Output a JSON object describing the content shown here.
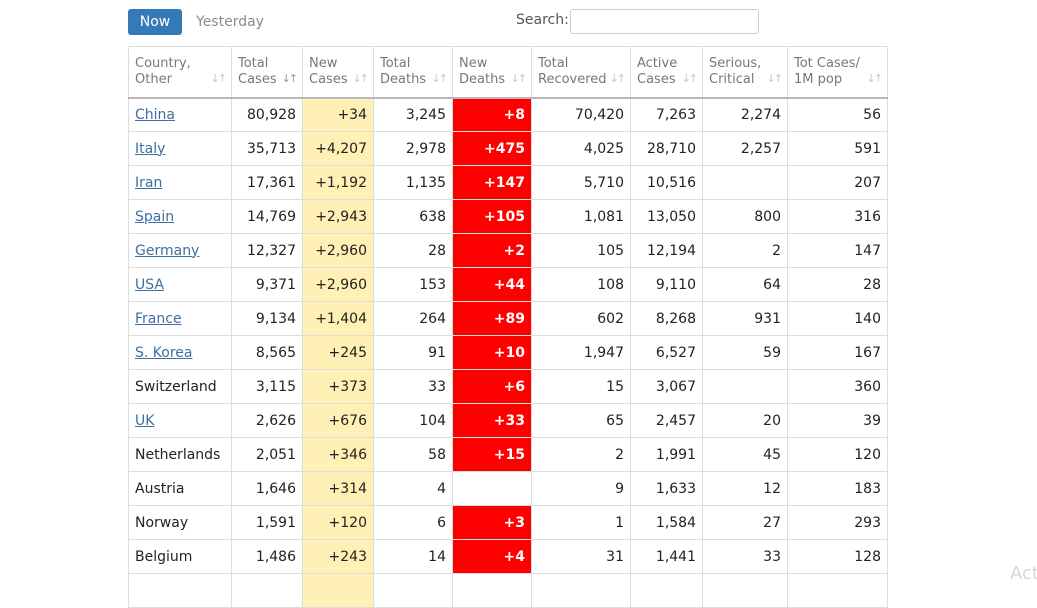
{
  "tabs": {
    "now": "Now",
    "yesterday": "Yesterday"
  },
  "search": {
    "label": "Search:",
    "value": "",
    "placeholder": ""
  },
  "table": {
    "headers": [
      [
        "Country,",
        "Other"
      ],
      [
        "Total",
        "Cases"
      ],
      [
        "New",
        "Cases"
      ],
      [
        "Total",
        "Deaths"
      ],
      [
        "New",
        "Deaths"
      ],
      [
        "Total",
        "Recovered"
      ],
      [
        "Active",
        "Cases"
      ],
      [
        "Serious,",
        "Critical"
      ],
      [
        "Tot Cases/",
        "1M pop"
      ]
    ],
    "rows": [
      {
        "country": "China",
        "link": true,
        "total_cases": "80,928",
        "new_cases": "+34",
        "total_deaths": "3,245",
        "new_deaths": "+8",
        "recovered": "70,420",
        "active": "7,263",
        "serious": "2,274",
        "per_million": "56"
      },
      {
        "country": "Italy",
        "link": true,
        "total_cases": "35,713",
        "new_cases": "+4,207",
        "total_deaths": "2,978",
        "new_deaths": "+475",
        "recovered": "4,025",
        "active": "28,710",
        "serious": "2,257",
        "per_million": "591"
      },
      {
        "country": "Iran",
        "link": true,
        "total_cases": "17,361",
        "new_cases": "+1,192",
        "total_deaths": "1,135",
        "new_deaths": "+147",
        "recovered": "5,710",
        "active": "10,516",
        "serious": "",
        "per_million": "207"
      },
      {
        "country": "Spain",
        "link": true,
        "total_cases": "14,769",
        "new_cases": "+2,943",
        "total_deaths": "638",
        "new_deaths": "+105",
        "recovered": "1,081",
        "active": "13,050",
        "serious": "800",
        "per_million": "316"
      },
      {
        "country": "Germany",
        "link": true,
        "total_cases": "12,327",
        "new_cases": "+2,960",
        "total_deaths": "28",
        "new_deaths": "+2",
        "recovered": "105",
        "active": "12,194",
        "serious": "2",
        "per_million": "147"
      },
      {
        "country": "USA",
        "link": true,
        "total_cases": "9,371",
        "new_cases": "+2,960",
        "total_deaths": "153",
        "new_deaths": "+44",
        "recovered": "108",
        "active": "9,110",
        "serious": "64",
        "per_million": "28"
      },
      {
        "country": "France",
        "link": true,
        "total_cases": "9,134",
        "new_cases": "+1,404",
        "total_deaths": "264",
        "new_deaths": "+89",
        "recovered": "602",
        "active": "8,268",
        "serious": "931",
        "per_million": "140"
      },
      {
        "country": "S. Korea",
        "link": true,
        "total_cases": "8,565",
        "new_cases": "+245",
        "total_deaths": "91",
        "new_deaths": "+10",
        "recovered": "1,947",
        "active": "6,527",
        "serious": "59",
        "per_million": "167"
      },
      {
        "country": "Switzerland",
        "link": false,
        "total_cases": "3,115",
        "new_cases": "+373",
        "total_deaths": "33",
        "new_deaths": "+6",
        "recovered": "15",
        "active": "3,067",
        "serious": "",
        "per_million": "360"
      },
      {
        "country": "UK",
        "link": true,
        "total_cases": "2,626",
        "new_cases": "+676",
        "total_deaths": "104",
        "new_deaths": "+33",
        "recovered": "65",
        "active": "2,457",
        "serious": "20",
        "per_million": "39"
      },
      {
        "country": "Netherlands",
        "link": false,
        "total_cases": "2,051",
        "new_cases": "+346",
        "total_deaths": "58",
        "new_deaths": "+15",
        "recovered": "2",
        "active": "1,991",
        "serious": "45",
        "per_million": "120"
      },
      {
        "country": "Austria",
        "link": false,
        "total_cases": "1,646",
        "new_cases": "+314",
        "total_deaths": "4",
        "new_deaths": "",
        "recovered": "9",
        "active": "1,633",
        "serious": "12",
        "per_million": "183"
      },
      {
        "country": "Norway",
        "link": false,
        "total_cases": "1,591",
        "new_cases": "+120",
        "total_deaths": "6",
        "new_deaths": "+3",
        "recovered": "1",
        "active": "1,584",
        "serious": "27",
        "per_million": "293"
      },
      {
        "country": "Belgium",
        "link": false,
        "total_cases": "1,486",
        "new_cases": "+243",
        "total_deaths": "14",
        "new_deaths": "+4",
        "recovered": "31",
        "active": "1,441",
        "serious": "33",
        "per_million": "128"
      },
      {
        "country": "",
        "link": false,
        "total_cases": "",
        "new_cases": "",
        "total_deaths": "",
        "new_deaths": "",
        "recovered": "",
        "active": "",
        "serious": "",
        "per_million": ""
      }
    ]
  },
  "colors": {
    "accent": "#337ab7",
    "new_cases_bg": "#fff0b5",
    "new_deaths_bg": "#ff0000",
    "link": "#3d6fa0"
  },
  "watermark": "Act"
}
